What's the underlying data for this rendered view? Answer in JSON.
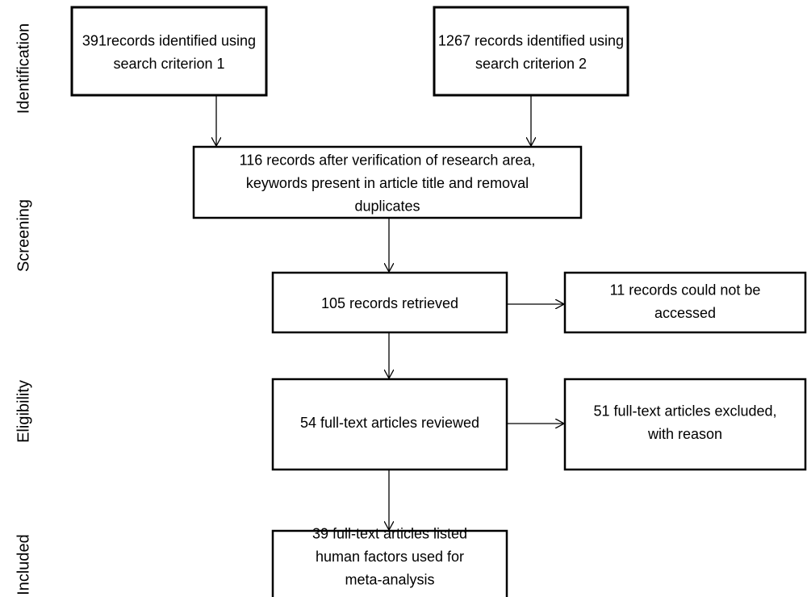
{
  "stages": [
    "Identification",
    "Screening",
    "Eligibility",
    "Included"
  ],
  "nodes": [
    {
      "lines": [
        "391records identified using",
        "search criterion 1"
      ]
    },
    {
      "lines": [
        "1267 records identified using",
        "search criterion 2"
      ]
    },
    {
      "lines": [
        "116 records after verification of research area,",
        "keywords present in article title and removal",
        "duplicates"
      ]
    },
    {
      "lines": [
        "105 records retrieved"
      ]
    },
    {
      "lines": [
        "11 records could not be",
        "accessed"
      ]
    },
    {
      "lines": [
        "54 full-text articles reviewed"
      ]
    },
    {
      "lines": [
        "51 full-text articles excluded,",
        "with reason"
      ]
    },
    {
      "lines": [
        "39 full-text articles listed",
        "human factors used for",
        "meta-analysis"
      ]
    }
  ]
}
